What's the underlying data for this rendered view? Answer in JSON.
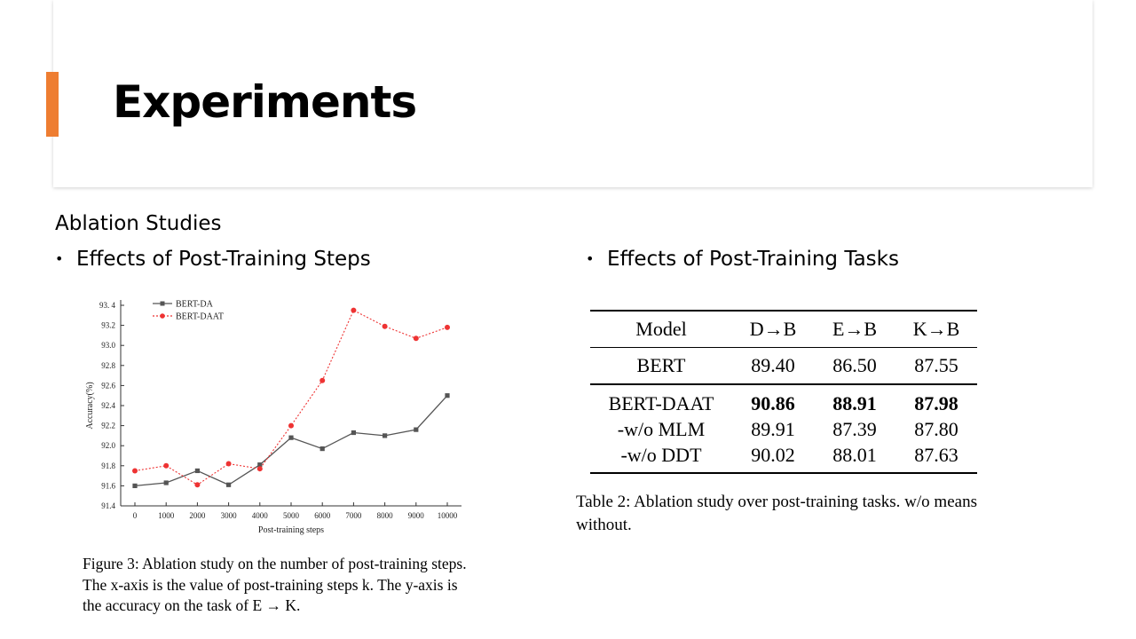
{
  "slide": {
    "title": "Experiments",
    "section_heading": "Ablation Studies",
    "bullet_left": "Effects of Post-Training Steps",
    "bullet_right": "Effects of Post-Training Tasks",
    "bullet_glyph": "•",
    "accent_color": "#ee7d31"
  },
  "figure_caption": "Figure 3: Ablation study on the number of post-training steps. The x-axis is the value of post-training steps k. The y-axis is the accuracy on the task of E → K.",
  "table_caption": "Table 2: Ablation study over post-training tasks. w/o means without.",
  "table": {
    "headers": [
      "Model",
      "D→B",
      "E→B",
      "K→B"
    ],
    "base_row": [
      "BERT",
      "89.40",
      "86.50",
      "87.55"
    ],
    "group_rows": [
      [
        "BERT-DAAT",
        "90.86",
        "88.91",
        "87.98"
      ],
      [
        "-w/o MLM",
        "89.91",
        "87.39",
        "87.80"
      ],
      [
        "-w/o DDT",
        "90.02",
        "88.01",
        "87.63"
      ]
    ],
    "bold_row_index": 0
  },
  "chart_data": {
    "type": "line",
    "title": "",
    "xlabel": "Post-training steps",
    "ylabel": "Accuracy(%)",
    "x": [
      0,
      1000,
      2000,
      3000,
      4000,
      5000,
      6000,
      7000,
      8000,
      9000,
      10000
    ],
    "x_tick_labels": [
      "0",
      "1000",
      "2000",
      "3000",
      "4000",
      "5000",
      "6000",
      "7000",
      "8000",
      "9000",
      "10000"
    ],
    "ylim": [
      91.4,
      93.4
    ],
    "y_ticks": [
      91.4,
      91.6,
      91.8,
      92.0,
      92.2,
      92.4,
      92.6,
      92.8,
      93.0,
      93.2,
      93.4
    ],
    "y_tick_labels": [
      "91.4",
      "91.6",
      "91.8",
      "92.0",
      "92.2",
      "92.4",
      "92.6",
      "92.8",
      "93.0",
      "93.2",
      "93. 4"
    ],
    "grid": false,
    "legend_position": "top-left",
    "series": [
      {
        "name": "BERT-DA",
        "color": "#555555",
        "style": "solid",
        "marker": "square",
        "values": [
          91.6,
          91.63,
          91.75,
          91.61,
          91.81,
          92.08,
          91.97,
          92.13,
          92.1,
          92.16,
          92.5
        ]
      },
      {
        "name": "BERT-DAAT",
        "color": "#ee3333",
        "style": "dotted",
        "marker": "circle",
        "values": [
          91.75,
          91.8,
          91.61,
          91.82,
          91.77,
          92.2,
          92.65,
          93.35,
          93.19,
          93.07,
          93.18
        ]
      }
    ]
  }
}
